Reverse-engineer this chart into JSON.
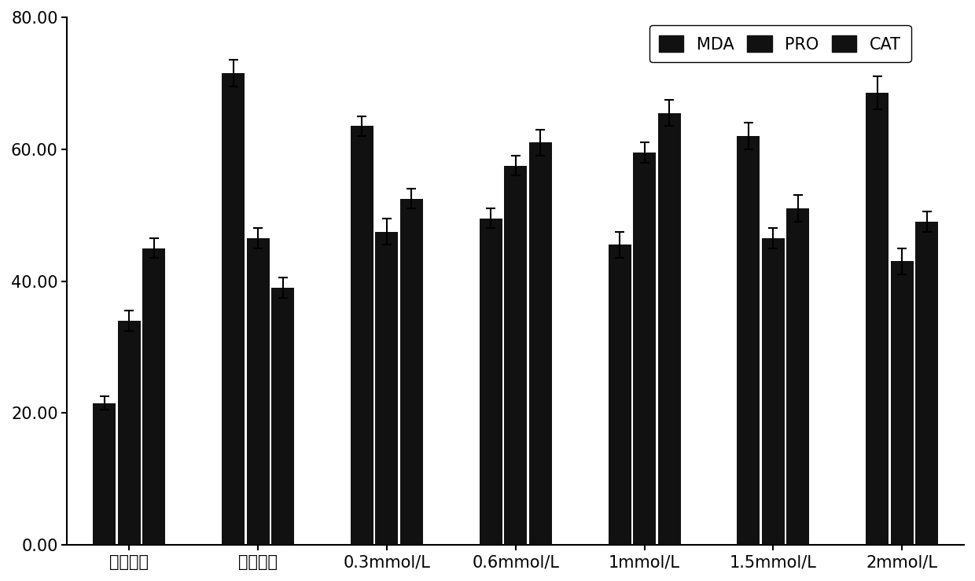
{
  "categories": [
    "正常对照",
    "单纯淹水",
    "0.3mmol/L",
    "0.6mmol/L",
    "1mmol/L",
    "1.5mmol/L",
    "2mmol/L"
  ],
  "series": {
    "MDA": [
      21.5,
      71.5,
      63.5,
      49.5,
      45.5,
      62.0,
      68.5
    ],
    "PRO": [
      34.0,
      46.5,
      47.5,
      57.5,
      59.5,
      46.5,
      43.0
    ],
    "CAT": [
      45.0,
      39.0,
      52.5,
      61.0,
      65.5,
      51.0,
      49.0
    ]
  },
  "errors": {
    "MDA": [
      1.0,
      2.0,
      1.5,
      1.5,
      2.0,
      2.0,
      2.5
    ],
    "PRO": [
      1.5,
      1.5,
      2.0,
      1.5,
      1.5,
      1.5,
      2.0
    ],
    "CAT": [
      1.5,
      1.5,
      1.5,
      2.0,
      2.0,
      2.0,
      1.5
    ]
  },
  "bar_color": "#111111",
  "ylim": [
    0,
    80
  ],
  "yticks": [
    0.0,
    20.0,
    40.0,
    60.0,
    80.0
  ],
  "ytick_labels": [
    "0.00",
    "20.00",
    "40.00",
    "60.00",
    "80.00"
  ],
  "legend_labels": [
    "MDA",
    "PRO",
    "CAT"
  ],
  "bar_width": 0.25,
  "figsize": [
    12.4,
    7.39
  ],
  "dpi": 100,
  "background_color": "#ffffff",
  "font_size_ticks": 15,
  "font_size_legend": 15
}
